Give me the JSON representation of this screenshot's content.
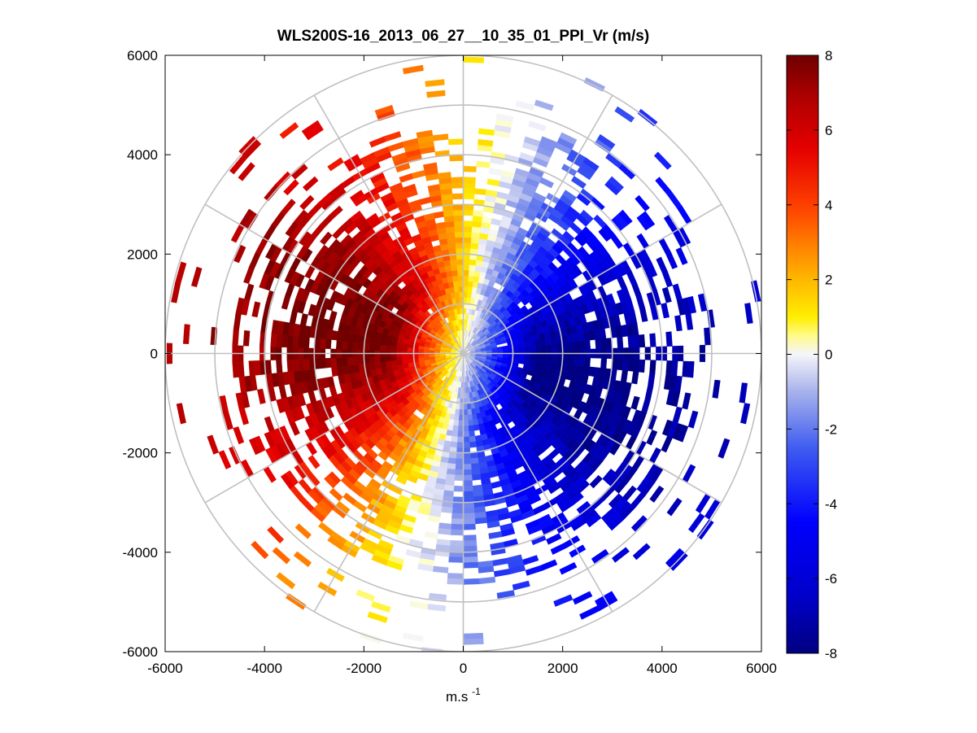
{
  "chart_data": {
    "type": "heatmap",
    "subtype": "polar-ppi",
    "title": "WLS200S-16_2013_06_27__10_35_01_PPI_Vr (m/s)",
    "xlabel_main": "m.s",
    "xlabel_superscript": "-1",
    "ylabel": "",
    "xlim": [
      -6000,
      6000
    ],
    "ylim": [
      -6000,
      6000
    ],
    "xticks": [
      -6000,
      -4000,
      -2000,
      0,
      2000,
      4000,
      6000
    ],
    "yticks": [
      6000,
      4000,
      2000,
      0,
      -2000,
      -4000,
      -6000
    ],
    "xtick_labels": [
      "-6000",
      "-4000",
      "-2000",
      "0",
      "2000",
      "4000",
      "6000"
    ],
    "ytick_labels": [
      "6000",
      "4000",
      "2000",
      "0",
      "-2000",
      "-4000",
      "-6000"
    ],
    "range_rings": [
      1000,
      2000,
      3000,
      4000,
      5000,
      6000
    ],
    "radial_spokes_deg": [
      0,
      30,
      60,
      90,
      120,
      150,
      180,
      210,
      240,
      270,
      300,
      330
    ],
    "grid": true,
    "colorbar": {
      "clim": [
        -8,
        8
      ],
      "ticks": [
        8,
        6,
        4,
        2,
        0,
        -2,
        -4,
        -6,
        -8
      ],
      "tick_labels": [
        "8",
        "6",
        "4",
        "2",
        "0",
        "-2",
        "-4",
        "-6",
        "-8"
      ],
      "colormap": "blue-white-red"
    },
    "field": {
      "description": "Radial velocity pattern: positive (red) on the west half, negative (blue) on the east half",
      "peak_positive_ms": 8,
      "peak_negative_ms": -8,
      "max_valid_range_m": 6000
    }
  }
}
